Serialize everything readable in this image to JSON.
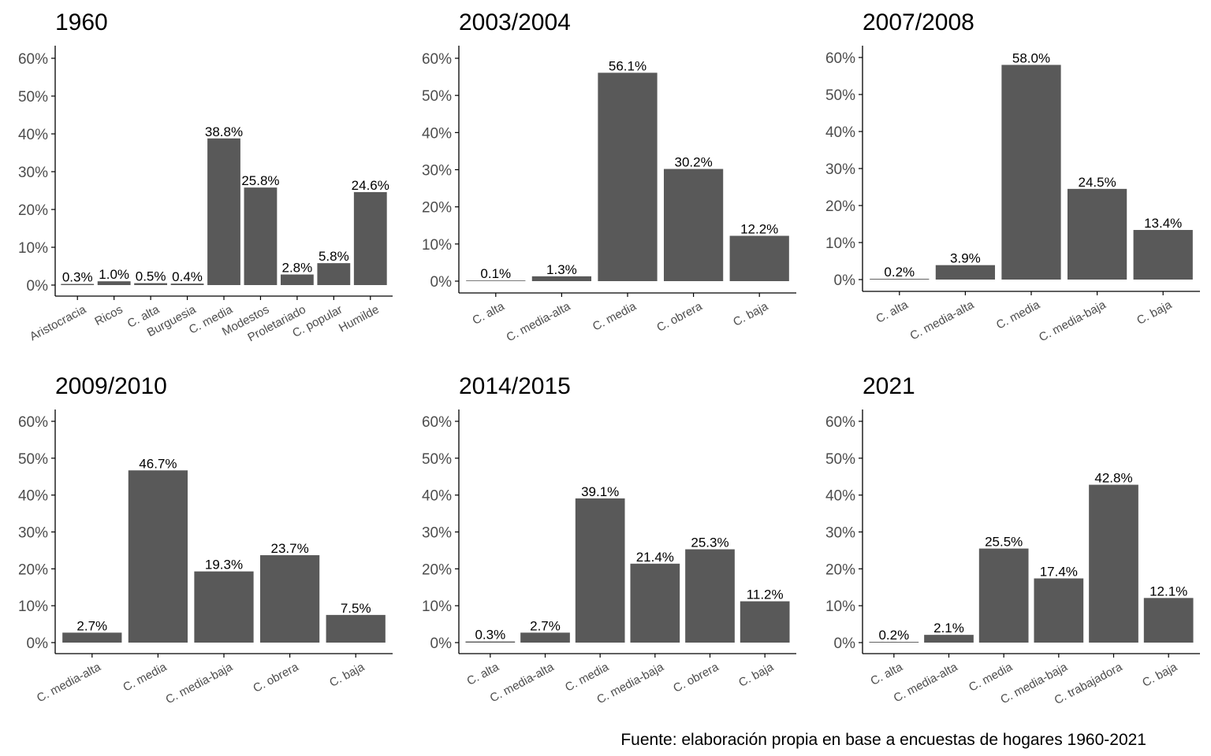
{
  "colors": {
    "bar": "#595959",
    "axis": "#000000",
    "tick_text": "#4d4d4d",
    "label_text": "#000000"
  },
  "caption": "Fuente: elaboración propia en base a encuestas de hogares 1960-2021",
  "chart_data": [
    {
      "type": "bar",
      "title": "1960",
      "categories": [
        "Aristocracia",
        "Ricos",
        "C. alta",
        "Burguesia",
        "C. media",
        "Modestos",
        "Proletariado",
        "C. popular",
        "Humilde"
      ],
      "values": [
        0.3,
        1.0,
        0.5,
        0.4,
        38.8,
        25.8,
        2.8,
        5.8,
        24.6
      ],
      "labels": [
        "0.3%",
        "1.0%",
        "0.5%",
        "0.4%",
        "38.8%",
        "25.8%",
        "2.8%",
        "5.8%",
        "24.6%"
      ],
      "ylim": [
        0,
        60
      ],
      "yticks": [
        "0%",
        "10%",
        "20%",
        "30%",
        "40%",
        "50%",
        "60%"
      ]
    },
    {
      "type": "bar",
      "title": "2003/2004",
      "categories": [
        "C. alta",
        "C. media-alta",
        "C. media",
        "C. obrera",
        "C. baja"
      ],
      "values": [
        0.1,
        1.3,
        56.1,
        30.2,
        12.2
      ],
      "labels": [
        "0.1%",
        "1.3%",
        "56.1%",
        "30.2%",
        "12.2%"
      ],
      "ylim": [
        0,
        60
      ],
      "yticks": [
        "0%",
        "10%",
        "20%",
        "30%",
        "40%",
        "50%",
        "60%"
      ]
    },
    {
      "type": "bar",
      "title": "2007/2008",
      "categories": [
        "C. alta",
        "C. media-alta",
        "C. media",
        "C. media-baja",
        "C. baja"
      ],
      "values": [
        0.2,
        3.9,
        58.0,
        24.5,
        13.4
      ],
      "labels": [
        "0.2%",
        "3.9%",
        "58.0%",
        "24.5%",
        "13.4%"
      ],
      "ylim": [
        0,
        60
      ],
      "yticks": [
        "0%",
        "10%",
        "20%",
        "30%",
        "40%",
        "50%",
        "60%"
      ]
    },
    {
      "type": "bar",
      "title": "2009/2010",
      "categories": [
        "C. media-alta",
        "C. media",
        "C. media-baja",
        "C. obrera",
        "C. baja"
      ],
      "values": [
        2.7,
        46.7,
        19.3,
        23.7,
        7.5
      ],
      "labels": [
        "2.7%",
        "46.7%",
        "19.3%",
        "23.7%",
        "7.5%"
      ],
      "ylim": [
        0,
        60
      ],
      "yticks": [
        "0%",
        "10%",
        "20%",
        "30%",
        "40%",
        "50%",
        "60%"
      ]
    },
    {
      "type": "bar",
      "title": "2014/2015",
      "categories": [
        "C. alta",
        "C. media-alta",
        "C. media",
        "C. media-baja",
        "C. obrera",
        "C. baja"
      ],
      "values": [
        0.3,
        2.7,
        39.1,
        21.4,
        25.3,
        11.2
      ],
      "labels": [
        "0.3%",
        "2.7%",
        "39.1%",
        "21.4%",
        "25.3%",
        "11.2%"
      ],
      "ylim": [
        0,
        60
      ],
      "yticks": [
        "0%",
        "10%",
        "20%",
        "30%",
        "40%",
        "50%",
        "60%"
      ]
    },
    {
      "type": "bar",
      "title": "2021",
      "categories": [
        "C. alta",
        "C. media-alta",
        "C. media",
        "C. media-baja",
        "C. trabajadora",
        "C. baja"
      ],
      "values": [
        0.2,
        2.1,
        25.5,
        17.4,
        42.8,
        12.1
      ],
      "labels": [
        "0.2%",
        "2.1%",
        "25.5%",
        "17.4%",
        "42.8%",
        "12.1%"
      ],
      "ylim": [
        0,
        60
      ],
      "yticks": [
        "0%",
        "10%",
        "20%",
        "30%",
        "40%",
        "50%",
        "60%"
      ]
    }
  ]
}
